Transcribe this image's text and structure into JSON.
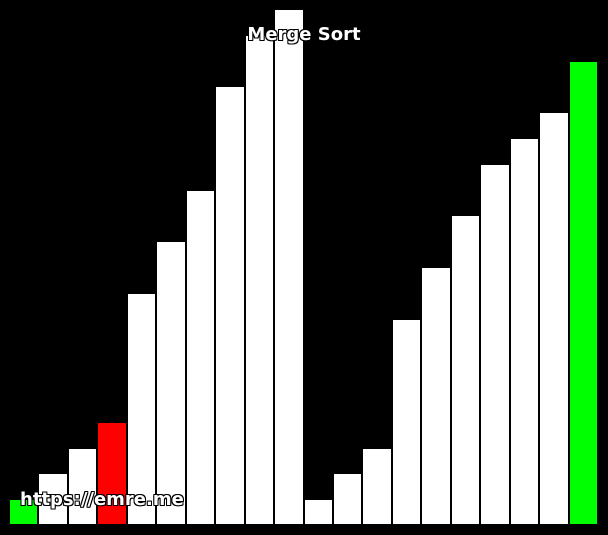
{
  "title": "Merge Sort",
  "watermark": "https://emre.me",
  "colors": {
    "background": "#000000",
    "default": "#ffffff",
    "compare": "#ff0000",
    "merge": "#00ff00"
  },
  "chart_data": {
    "type": "bar",
    "values": [
      1,
      2,
      3,
      4,
      9,
      11,
      13,
      17,
      19,
      20,
      1,
      2,
      3,
      8,
      10,
      12,
      14,
      15,
      16,
      18
    ],
    "states": [
      "merge",
      "default",
      "default",
      "compare",
      "default",
      "default",
      "default",
      "default",
      "default",
      "default",
      "default",
      "default",
      "default",
      "default",
      "default",
      "default",
      "default",
      "default",
      "default",
      "merge"
    ],
    "ylim": [
      0,
      20
    ]
  }
}
